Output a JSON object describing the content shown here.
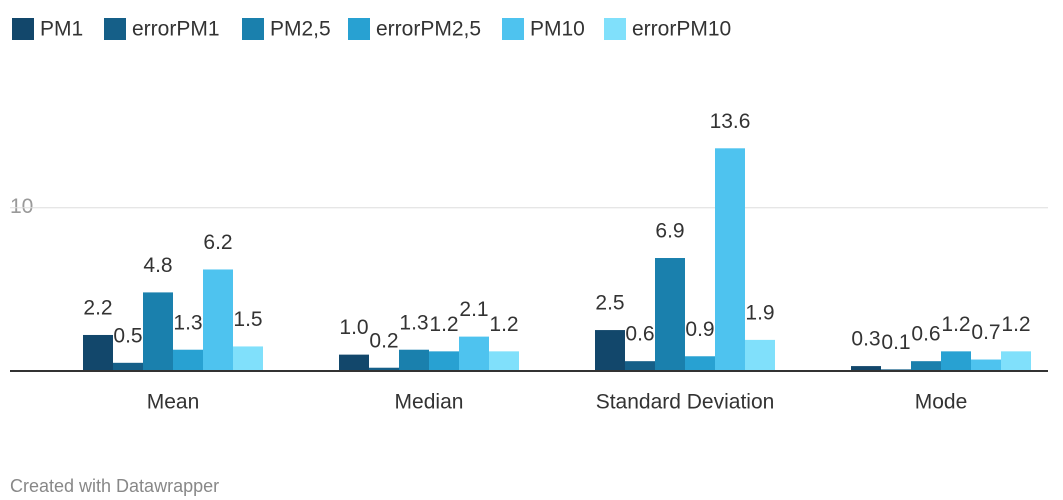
{
  "chart_data": {
    "type": "bar",
    "categories": [
      "Mean",
      "Median",
      "Standard Deviation",
      "Mode"
    ],
    "series": [
      {
        "name": "PM1",
        "color": "#12476b",
        "values": [
          2.2,
          1.0,
          2.5,
          0.3
        ],
        "value_labels": [
          "2.2",
          "1.0",
          "2.5",
          "0.3"
        ]
      },
      {
        "name": "errorPM1",
        "color": "#155f88",
        "values": [
          0.5,
          0.2,
          0.6,
          0.1
        ],
        "value_labels": [
          "0.5",
          "0.2",
          "0.6",
          "0.1"
        ]
      },
      {
        "name": "PM2,5",
        "color": "#1a80ad",
        "values": [
          4.8,
          1.3,
          6.9,
          0.6
        ],
        "value_labels": [
          "4.8",
          "1.3",
          "6.9",
          "0.6"
        ]
      },
      {
        "name": "errorPM2,5",
        "color": "#28a1d2",
        "values": [
          1.3,
          1.2,
          0.9,
          1.2
        ],
        "value_labels": [
          "1.3",
          "1.2",
          "0.9",
          "1.2"
        ]
      },
      {
        "name": "PM10",
        "color": "#4ec3ef",
        "values": [
          6.2,
          2.1,
          13.6,
          0.7
        ],
        "value_labels": [
          "6.2",
          "2.1",
          "13.6",
          "0.7"
        ]
      },
      {
        "name": "errorPM10",
        "color": "#80e0fb",
        "values": [
          1.5,
          1.2,
          1.9,
          1.2
        ],
        "value_labels": [
          "1.5",
          "1.2",
          "1.9",
          "1.2"
        ]
      }
    ],
    "ylim": [
      0,
      16
    ],
    "yticks": [
      10
    ],
    "grid": true,
    "credit": "Created with Datawrapper"
  }
}
